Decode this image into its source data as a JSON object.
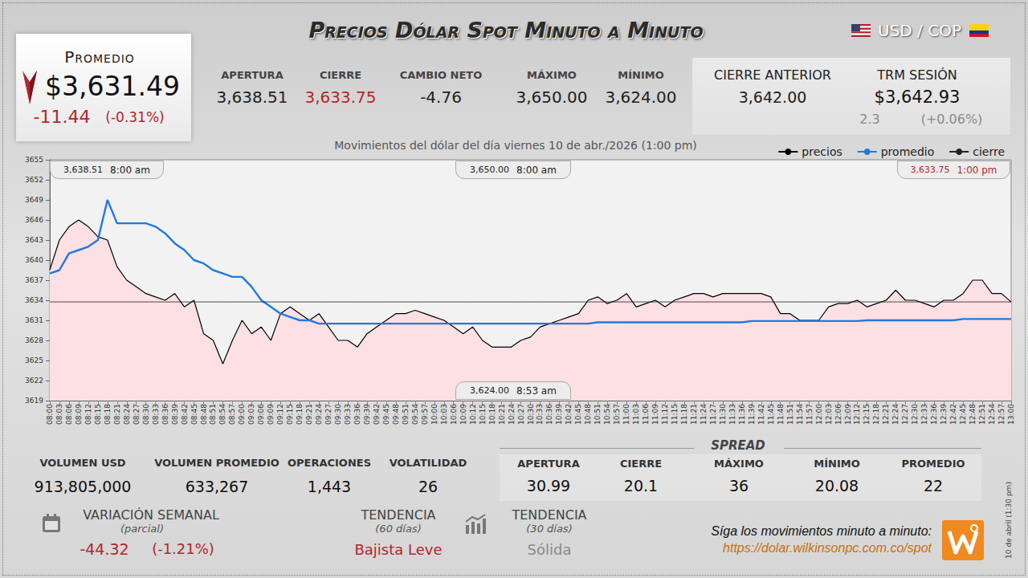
{
  "header": {
    "title": "Precios Dólar Spot Minuto a Minuto",
    "pair": "USD / COP"
  },
  "summary": {
    "label": "Promedio",
    "value": "$3,631.49",
    "change": "-11.44",
    "change_pct": "(-0.31%)"
  },
  "stats": [
    {
      "label": "APERTURA",
      "value": "3,638.51"
    },
    {
      "label": "CIERRE",
      "value": "3,633.75"
    },
    {
      "label": "CAMBIO NETO",
      "value": "-4.76"
    },
    {
      "label": "MÁXIMO",
      "value": "3,650.00"
    },
    {
      "label": "MÍNIMO",
      "value": "3,624.00"
    }
  ],
  "previous": {
    "label": "CIERRE ANTERIOR",
    "value": "3,642.00"
  },
  "trm": {
    "label": "TRM SESIÓN",
    "value": "$3,642.93",
    "change": "2.3",
    "change_pct": "(+0.06%)"
  },
  "chart_data": {
    "type": "line",
    "title": "Movimientos del dólar del día viernes 10 de abr./2026 (1:00 pm)",
    "legend": "top-right",
    "grid": false,
    "ylim": [
      3619,
      3655
    ],
    "yticks": [
      3619,
      3622,
      3625,
      3628,
      3631,
      3634,
      3637,
      3640,
      3643,
      3646,
      3649,
      3652,
      3655
    ],
    "categories": [
      "08:00",
      "08:03",
      "08:06",
      "08:09",
      "08:12",
      "08:15",
      "08:18",
      "08:21",
      "08:24",
      "08:27",
      "08:30",
      "08:33",
      "08:36",
      "08:39",
      "08:42",
      "08:45",
      "08:48",
      "08:51",
      "08:54",
      "08:57",
      "09:00",
      "09:03",
      "09:06",
      "09:09",
      "09:12",
      "09:15",
      "09:18",
      "09:21",
      "09:24",
      "09:27",
      "09:30",
      "09:33",
      "09:36",
      "09:39",
      "09:42",
      "09:45",
      "09:48",
      "09:51",
      "09:54",
      "09:57",
      "10:00",
      "10:03",
      "10:06",
      "10:09",
      "10:12",
      "10:15",
      "10:18",
      "10:21",
      "10:24",
      "10:27",
      "10:30",
      "10:33",
      "10:36",
      "10:39",
      "10:42",
      "10:45",
      "10:48",
      "10:51",
      "10:54",
      "10:57",
      "11:00",
      "11:03",
      "11:06",
      "11:09",
      "11:12",
      "11:15",
      "11:18",
      "11:21",
      "11:24",
      "11:27",
      "11:30",
      "11:33",
      "11:36",
      "11:39",
      "11:42",
      "11:45",
      "11:48",
      "11:51",
      "11:54",
      "11:57",
      "12:00",
      "12:03",
      "12:06",
      "12:09",
      "12:12",
      "12:15",
      "12:18",
      "12:21",
      "12:24",
      "12:27",
      "12:30",
      "12:33",
      "12:36",
      "12:39",
      "12:42",
      "12:45",
      "12:48",
      "12:51",
      "12:54",
      "12:57",
      "13:00"
    ],
    "series": [
      {
        "name": "precios",
        "color": "#000000",
        "line_style": "solid",
        "values": [
          3638.51,
          3643,
          3645,
          3646,
          3645,
          3643.5,
          3643,
          3639,
          3637,
          3636,
          3635,
          3634.5,
          3634,
          3635,
          3633,
          3634,
          3629,
          3628,
          3624.5,
          3628,
          3631,
          3629,
          3630,
          3628,
          3632,
          3633,
          3632,
          3631,
          3632,
          3630,
          3628,
          3628,
          3627,
          3629,
          3630,
          3631,
          3632,
          3632,
          3632.5,
          3632,
          3631.5,
          3631,
          3630,
          3629,
          3630,
          3628,
          3627,
          3627,
          3627,
          3628,
          3628.5,
          3630,
          3630.5,
          3631,
          3631.5,
          3632,
          3634,
          3634.5,
          3633.5,
          3634,
          3635,
          3633,
          3633.5,
          3634,
          3633,
          3634,
          3634.5,
          3635,
          3635,
          3634.5,
          3635,
          3635,
          3635,
          3635,
          3635,
          3634.5,
          3632,
          3632,
          3631,
          3631,
          3631,
          3633,
          3633.5,
          3633.5,
          3634,
          3633,
          3633.5,
          3634,
          3635.5,
          3634,
          3634,
          3633.5,
          3633,
          3634,
          3634,
          3635,
          3637,
          3637,
          3635,
          3635,
          3633.75
        ]
      },
      {
        "name": "promedio",
        "color": "#1f7ae0",
        "line_style": "solid",
        "values": [
          3638,
          3638.5,
          3641,
          3641.5,
          3642,
          3643,
          3649,
          3645.5,
          3645.5,
          3645.5,
          3645.5,
          3645,
          3644,
          3642.5,
          3641.5,
          3640,
          3639.5,
          3638.5,
          3638,
          3637.5,
          3637.5,
          3636,
          3634,
          3633,
          3632,
          3631.5,
          3631,
          3631,
          3630.5,
          3630.5,
          3630.5,
          3630.5,
          3630.5,
          3630.5,
          3630.5,
          3630.5,
          3630.5,
          3630.5,
          3630.5,
          3630.5,
          3630.5,
          3630.5,
          3630.5,
          3630.5,
          3630.5,
          3630.5,
          3630.5,
          3630.5,
          3630.5,
          3630.5,
          3630.5,
          3630.5,
          3630.5,
          3630.5,
          3630.5,
          3630.5,
          3630.5,
          3630.7,
          3630.7,
          3630.7,
          3630.7,
          3630.7,
          3630.7,
          3630.7,
          3630.7,
          3630.7,
          3630.7,
          3630.7,
          3630.7,
          3630.7,
          3630.7,
          3630.7,
          3630.7,
          3630.9,
          3630.9,
          3630.9,
          3630.9,
          3630.9,
          3630.9,
          3630.9,
          3630.9,
          3630.9,
          3630.9,
          3630.9,
          3630.9,
          3631,
          3631,
          3631,
          3631,
          3631,
          3631,
          3631,
          3631,
          3631,
          3631,
          3631.2,
          3631.2,
          3631.2,
          3631.2,
          3631.2,
          3631.2
        ]
      },
      {
        "name": "cierre",
        "color": "#222222",
        "line_style": "solid",
        "values": [
          3633.75,
          3633.75,
          3633.75,
          3633.75,
          3633.75,
          3633.75,
          3633.75,
          3633.75,
          3633.75,
          3633.75,
          3633.75,
          3633.75,
          3633.75,
          3633.75,
          3633.75,
          3633.75,
          3633.75,
          3633.75,
          3633.75,
          3633.75,
          3633.75,
          3633.75,
          3633.75,
          3633.75,
          3633.75,
          3633.75,
          3633.75,
          3633.75,
          3633.75,
          3633.75,
          3633.75,
          3633.75,
          3633.75,
          3633.75,
          3633.75,
          3633.75,
          3633.75,
          3633.75,
          3633.75,
          3633.75,
          3633.75,
          3633.75,
          3633.75,
          3633.75,
          3633.75,
          3633.75,
          3633.75,
          3633.75,
          3633.75,
          3633.75,
          3633.75,
          3633.75,
          3633.75,
          3633.75,
          3633.75,
          3633.75,
          3633.75,
          3633.75,
          3633.75,
          3633.75,
          3633.75,
          3633.75,
          3633.75,
          3633.75,
          3633.75,
          3633.75,
          3633.75,
          3633.75,
          3633.75,
          3633.75,
          3633.75,
          3633.75,
          3633.75,
          3633.75,
          3633.75,
          3633.75,
          3633.75,
          3633.75,
          3633.75,
          3633.75,
          3633.75,
          3633.75,
          3633.75,
          3633.75,
          3633.75,
          3633.75,
          3633.75,
          3633.75,
          3633.75,
          3633.75,
          3633.75,
          3633.75,
          3633.75,
          3633.75,
          3633.75,
          3633.75,
          3633.75,
          3633.75,
          3633.75,
          3633.75,
          3633.75
        ]
      }
    ],
    "annotations": [
      {
        "text": "3,638.51",
        "value": 3638.51,
        "time": "8:00 am"
      },
      {
        "text": "3,650.00",
        "value": 3650,
        "time": "8:00 am"
      },
      {
        "text": "3,633.75",
        "value": 3633.75,
        "time": "1:00 pm"
      },
      {
        "text": "3,624.00",
        "value": 3624,
        "time": "8:53 am"
      }
    ]
  },
  "footer_stats": [
    {
      "label": "VOLUMEN USD",
      "value": "913,805,000"
    },
    {
      "label": "VOLUMEN PROMEDIO",
      "value": "633,267"
    },
    {
      "label": "OPERACIONES",
      "value": "1,443"
    },
    {
      "label": "VOLATILIDAD",
      "value": "26"
    }
  ],
  "spread": {
    "title": "SPREAD",
    "items": [
      {
        "label": "APERTURA",
        "value": "30.99"
      },
      {
        "label": "CIERRE",
        "value": "20.1"
      },
      {
        "label": "MÁXIMO",
        "value": "36"
      },
      {
        "label": "MÍNIMO",
        "value": "20.08"
      },
      {
        "label": "PROMEDIO",
        "value": "22"
      }
    ]
  },
  "weekly": {
    "label": "VARIACIÓN SEMANAL",
    "note": "(parcial)",
    "change": "-44.32",
    "change_pct": "(-1.21%)"
  },
  "trends": [
    {
      "label": "TENDENCIA",
      "note": "(60 días)",
      "value": "Bajista Leve"
    },
    {
      "label": "TENDENCIA",
      "note": "(30 días)",
      "value": "Sólida"
    }
  ],
  "promo": {
    "text": "Síga los movimientos minuto a minuto:",
    "url": "https://dolar.wilkinsonpc.com.co/spot"
  },
  "stamp": "10 de abril (1:30 pm)"
}
